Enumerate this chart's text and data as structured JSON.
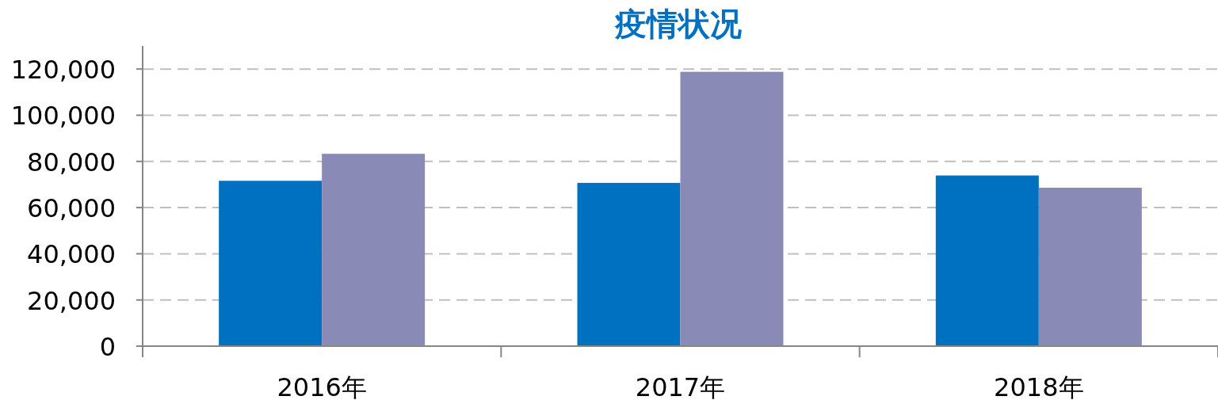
{
  "chart_data": {
    "type": "bar",
    "title": "疫情状况",
    "categories": [
      "2016年",
      "2017年",
      "2018年"
    ],
    "series": [
      {
        "color": "#0070c0",
        "values": [
          71600,
          70700,
          73900
        ]
      },
      {
        "color": "#8a8ab7",
        "values": [
          83300,
          118800,
          68600
        ]
      }
    ],
    "ylim": [
      0,
      130000
    ],
    "yticks": [
      {
        "value": 0,
        "label": "0"
      },
      {
        "value": 20000,
        "label": "20,000"
      },
      {
        "value": 40000,
        "label": "40,000"
      },
      {
        "value": 60000,
        "label": "60,000"
      },
      {
        "value": 80000,
        "label": "80,000"
      },
      {
        "value": 100000,
        "label": "100,000"
      },
      {
        "value": 120000,
        "label": "120,000"
      }
    ],
    "grid": "y"
  }
}
